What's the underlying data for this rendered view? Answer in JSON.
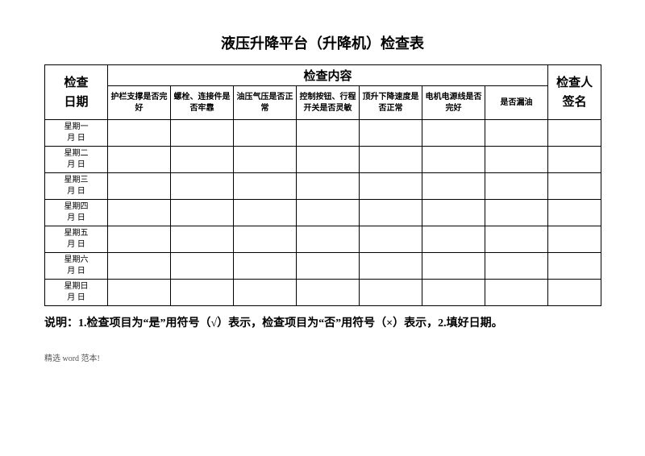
{
  "title": "液压升降平台（升降机）检查表",
  "header": {
    "date": "检查\n日期",
    "content": "检查内容",
    "signer": "检查人\n签名"
  },
  "sub_headers": [
    "护栏支撑是否完好",
    "螺栓、连接件是否牢靠",
    "油压气压是否正常",
    "控制按钮、行程开关是否灵敏",
    "顶升下降速度是否正常",
    "电机电源线是否完好",
    "是否漏油"
  ],
  "rows": [
    "星期一\n   月    日",
    "星期二\n   月    日",
    "星期三\n   月    日",
    "星期四\n   月    日",
    "星期五\n   月    日",
    "星期六\n   月    日",
    "星期日\n   月    日"
  ],
  "note": "说明：1.检查项目为“是”用符号（√）表示，检查项目为“否”用符号（×）表示，2.填好日期。",
  "footer": "精选 word 范本!",
  "colwidths": {
    "date": "78px",
    "sub": "78px",
    "sign": "66px"
  }
}
